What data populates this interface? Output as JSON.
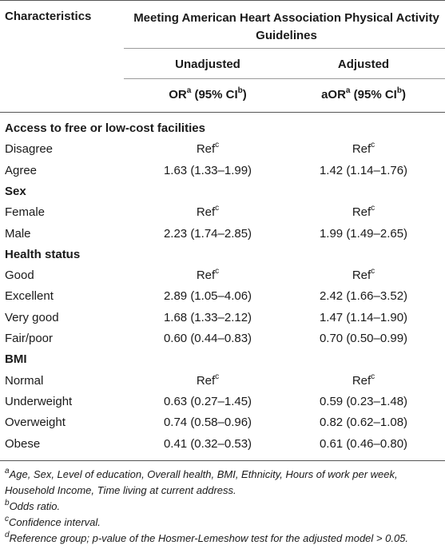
{
  "header": {
    "characteristics": "Characteristics",
    "main": "Meeting American Heart Association Physical Activity Guidelines",
    "unadjusted": "Unadjusted",
    "adjusted": "Adjusted",
    "or_prefix": "OR",
    "aor_prefix": "aOR",
    "sup_a": "a",
    "ci_open": " (95% CI",
    "sup_b": "b",
    "ci_close": ")"
  },
  "ref_text": "Ref",
  "ref_sup": "c",
  "sections": [
    {
      "title": "Access to free or low-cost facilities",
      "rows": [
        {
          "label": "Disagree",
          "unadj": "",
          "adj": "",
          "ref": true
        },
        {
          "label": "Agree",
          "unadj": "1.63 (1.33–1.99)",
          "adj": "1.42 (1.14–1.76)",
          "ref": false
        }
      ]
    },
    {
      "title": "Sex",
      "rows": [
        {
          "label": "Female",
          "unadj": "",
          "adj": "",
          "ref": true
        },
        {
          "label": "Male",
          "unadj": "2.23 (1.74–2.85)",
          "adj": "1.99 (1.49–2.65)",
          "ref": false
        }
      ]
    },
    {
      "title": "Health status",
      "rows": [
        {
          "label": "Good",
          "unadj": "",
          "adj": "",
          "ref": true
        },
        {
          "label": "Excellent",
          "unadj": "2.89 (1.05–4.06)",
          "adj": "2.42 (1.66–3.52)",
          "ref": false
        },
        {
          "label": "Very good",
          "unadj": "1.68 (1.33–2.12)",
          "adj": "1.47 (1.14–1.90)",
          "ref": false
        },
        {
          "label": "Fair/poor",
          "unadj": "0.60 (0.44–0.83)",
          "adj": "0.70 (0.50–0.99)",
          "ref": false
        }
      ]
    },
    {
      "title": "BMI",
      "rows": [
        {
          "label": "Normal",
          "unadj": "",
          "adj": "",
          "ref": true
        },
        {
          "label": "Underweight",
          "unadj": "0.63 (0.27–1.45)",
          "adj": "0.59 (0.23–1.48)",
          "ref": false
        },
        {
          "label": "Overweight",
          "unadj": "0.74 (0.58–0.96)",
          "adj": "0.82 (0.62–1.08)",
          "ref": false
        },
        {
          "label": "Obese",
          "unadj": "0.41 (0.32–0.53)",
          "adj": "0.61 (0.46–0.80)",
          "ref": false
        }
      ]
    }
  ],
  "footnotes": [
    {
      "mark": "a",
      "text": "Age, Sex, Level of education, Overall health, BMI, Ethnicity, Hours of work per week, Household Income, Time living at current address."
    },
    {
      "mark": "b",
      "text": "Odds ratio."
    },
    {
      "mark": "c",
      "text": "Confidence interval."
    },
    {
      "mark": "d",
      "text": "Reference group; p-value of the Hosmer-Lemeshow test for the adjusted model > 0.05."
    }
  ]
}
